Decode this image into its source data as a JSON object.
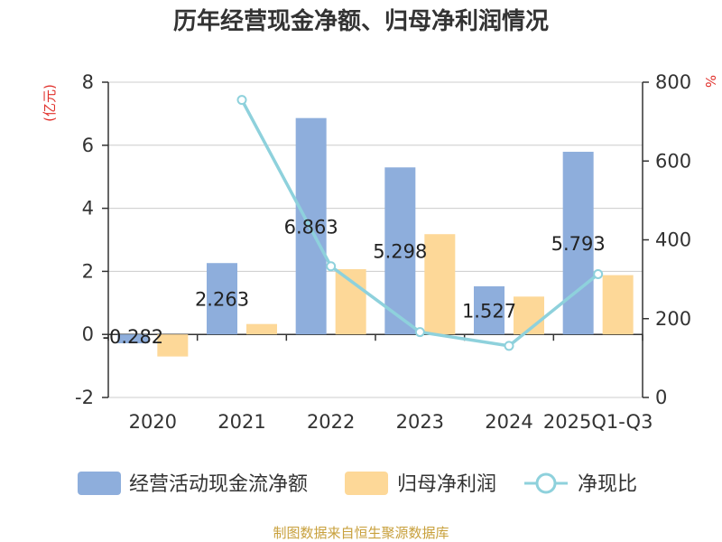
{
  "chart_data": {
    "type": "bar",
    "title": "历年经营现金净额、归母净利润情况",
    "categories": [
      "2020",
      "2021",
      "2022",
      "2023",
      "2024",
      "2025Q1-Q3"
    ],
    "y_left_unit": "(亿元)",
    "y_right_unit": "%",
    "ylim_left": [
      -2,
      8
    ],
    "ylim_right": [
      0,
      800
    ],
    "y_left_ticks": [
      "-2",
      "0",
      "2",
      "4",
      "6",
      "8"
    ],
    "y_right_ticks": [
      "0",
      "200",
      "400",
      "600",
      "800"
    ],
    "series": [
      {
        "name": "经营活动现金流净额",
        "kind": "bar",
        "axis": "left",
        "color": "#8eaedc",
        "values": [
          -0.282,
          2.263,
          6.863,
          5.298,
          1.527,
          5.793
        ],
        "labels": [
          "-0.282",
          "2.263",
          "6.863",
          "5.298",
          "1.527",
          "5.793"
        ]
      },
      {
        "name": "归母净利润",
        "kind": "bar",
        "axis": "left",
        "color": "#fdd898",
        "values": [
          -0.7,
          0.33,
          2.07,
          3.18,
          1.2,
          1.88
        ]
      },
      {
        "name": "净现比",
        "kind": "line",
        "axis": "right",
        "color": "#8ed1dc",
        "values": [
          null,
          755,
          333,
          166,
          131,
          313
        ]
      }
    ],
    "legend_position": "bottom",
    "grid": true,
    "source": "制图数据来自恒生聚源数据库"
  }
}
